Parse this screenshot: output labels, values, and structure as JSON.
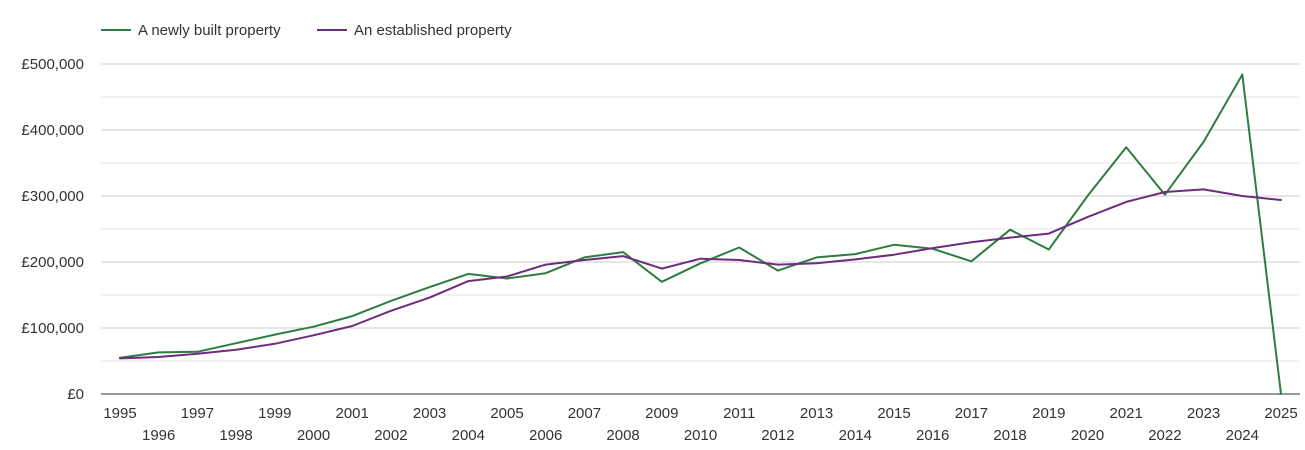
{
  "chart_data": {
    "type": "line",
    "title": "",
    "xlabel": "",
    "ylabel": "",
    "x": [
      1995,
      1996,
      1997,
      1998,
      1999,
      2000,
      2001,
      2002,
      2003,
      2004,
      2005,
      2006,
      2007,
      2008,
      2009,
      2010,
      2011,
      2012,
      2013,
      2014,
      2015,
      2016,
      2017,
      2018,
      2019,
      2020,
      2021,
      2022,
      2023,
      2024,
      2025
    ],
    "ylim": [
      0,
      500000
    ],
    "y_ticks": [
      0,
      100000,
      200000,
      300000,
      400000,
      500000
    ],
    "y_tick_labels": [
      "£0",
      "£100,000",
      "£200,000",
      "£300,000",
      "£400,000",
      "£500,000"
    ],
    "grid": true,
    "legend_position": "top-left",
    "series": [
      {
        "name": "A newly built property",
        "color": "#2e7d40",
        "values": [
          55000,
          63000,
          64000,
          77000,
          90000,
          102000,
          118000,
          141000,
          162000,
          182000,
          175000,
          183000,
          207000,
          215000,
          170000,
          198000,
          222000,
          187000,
          207000,
          212000,
          226000,
          220000,
          201000,
          249000,
          219000,
          300000,
          374000,
          302000,
          382000,
          484000,
          0
        ]
      },
      {
        "name": "An established property",
        "color": "#6e2c7e",
        "values": [
          54000,
          56000,
          61000,
          67000,
          76000,
          89000,
          103000,
          126000,
          146000,
          171000,
          178000,
          196000,
          203000,
          209000,
          190000,
          205000,
          203000,
          196000,
          198000,
          204000,
          211000,
          221000,
          230000,
          237000,
          243000,
          268000,
          291000,
          306000,
          310000,
          300000,
          294000
        ]
      }
    ]
  }
}
